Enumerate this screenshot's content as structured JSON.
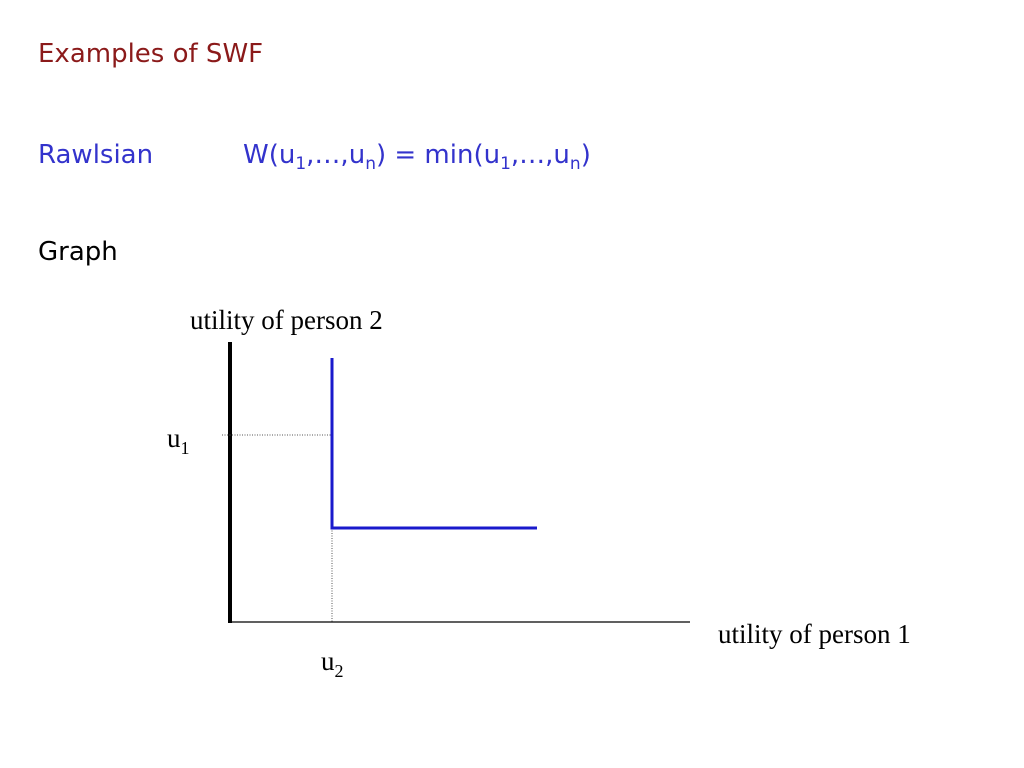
{
  "slide": {
    "title": "Examples of SWF",
    "definition": {
      "name": "Rawlsian",
      "formula": [
        {
          "base": "W(u",
          "sub": "1"
        },
        {
          "base": ",…,u",
          "sub": "n"
        },
        {
          "base": ") = min(u",
          "sub": "1"
        },
        {
          "base": ",…,u",
          "sub": "n"
        },
        {
          "base": ")"
        }
      ]
    },
    "section": "Graph",
    "graph": {
      "y_axis_label": "utility of person 2",
      "x_axis_label": "utility of person 1",
      "y_marker": {
        "base": "u",
        "sub": "1"
      },
      "x_marker": {
        "base": "u",
        "sub": "2"
      }
    }
  }
}
